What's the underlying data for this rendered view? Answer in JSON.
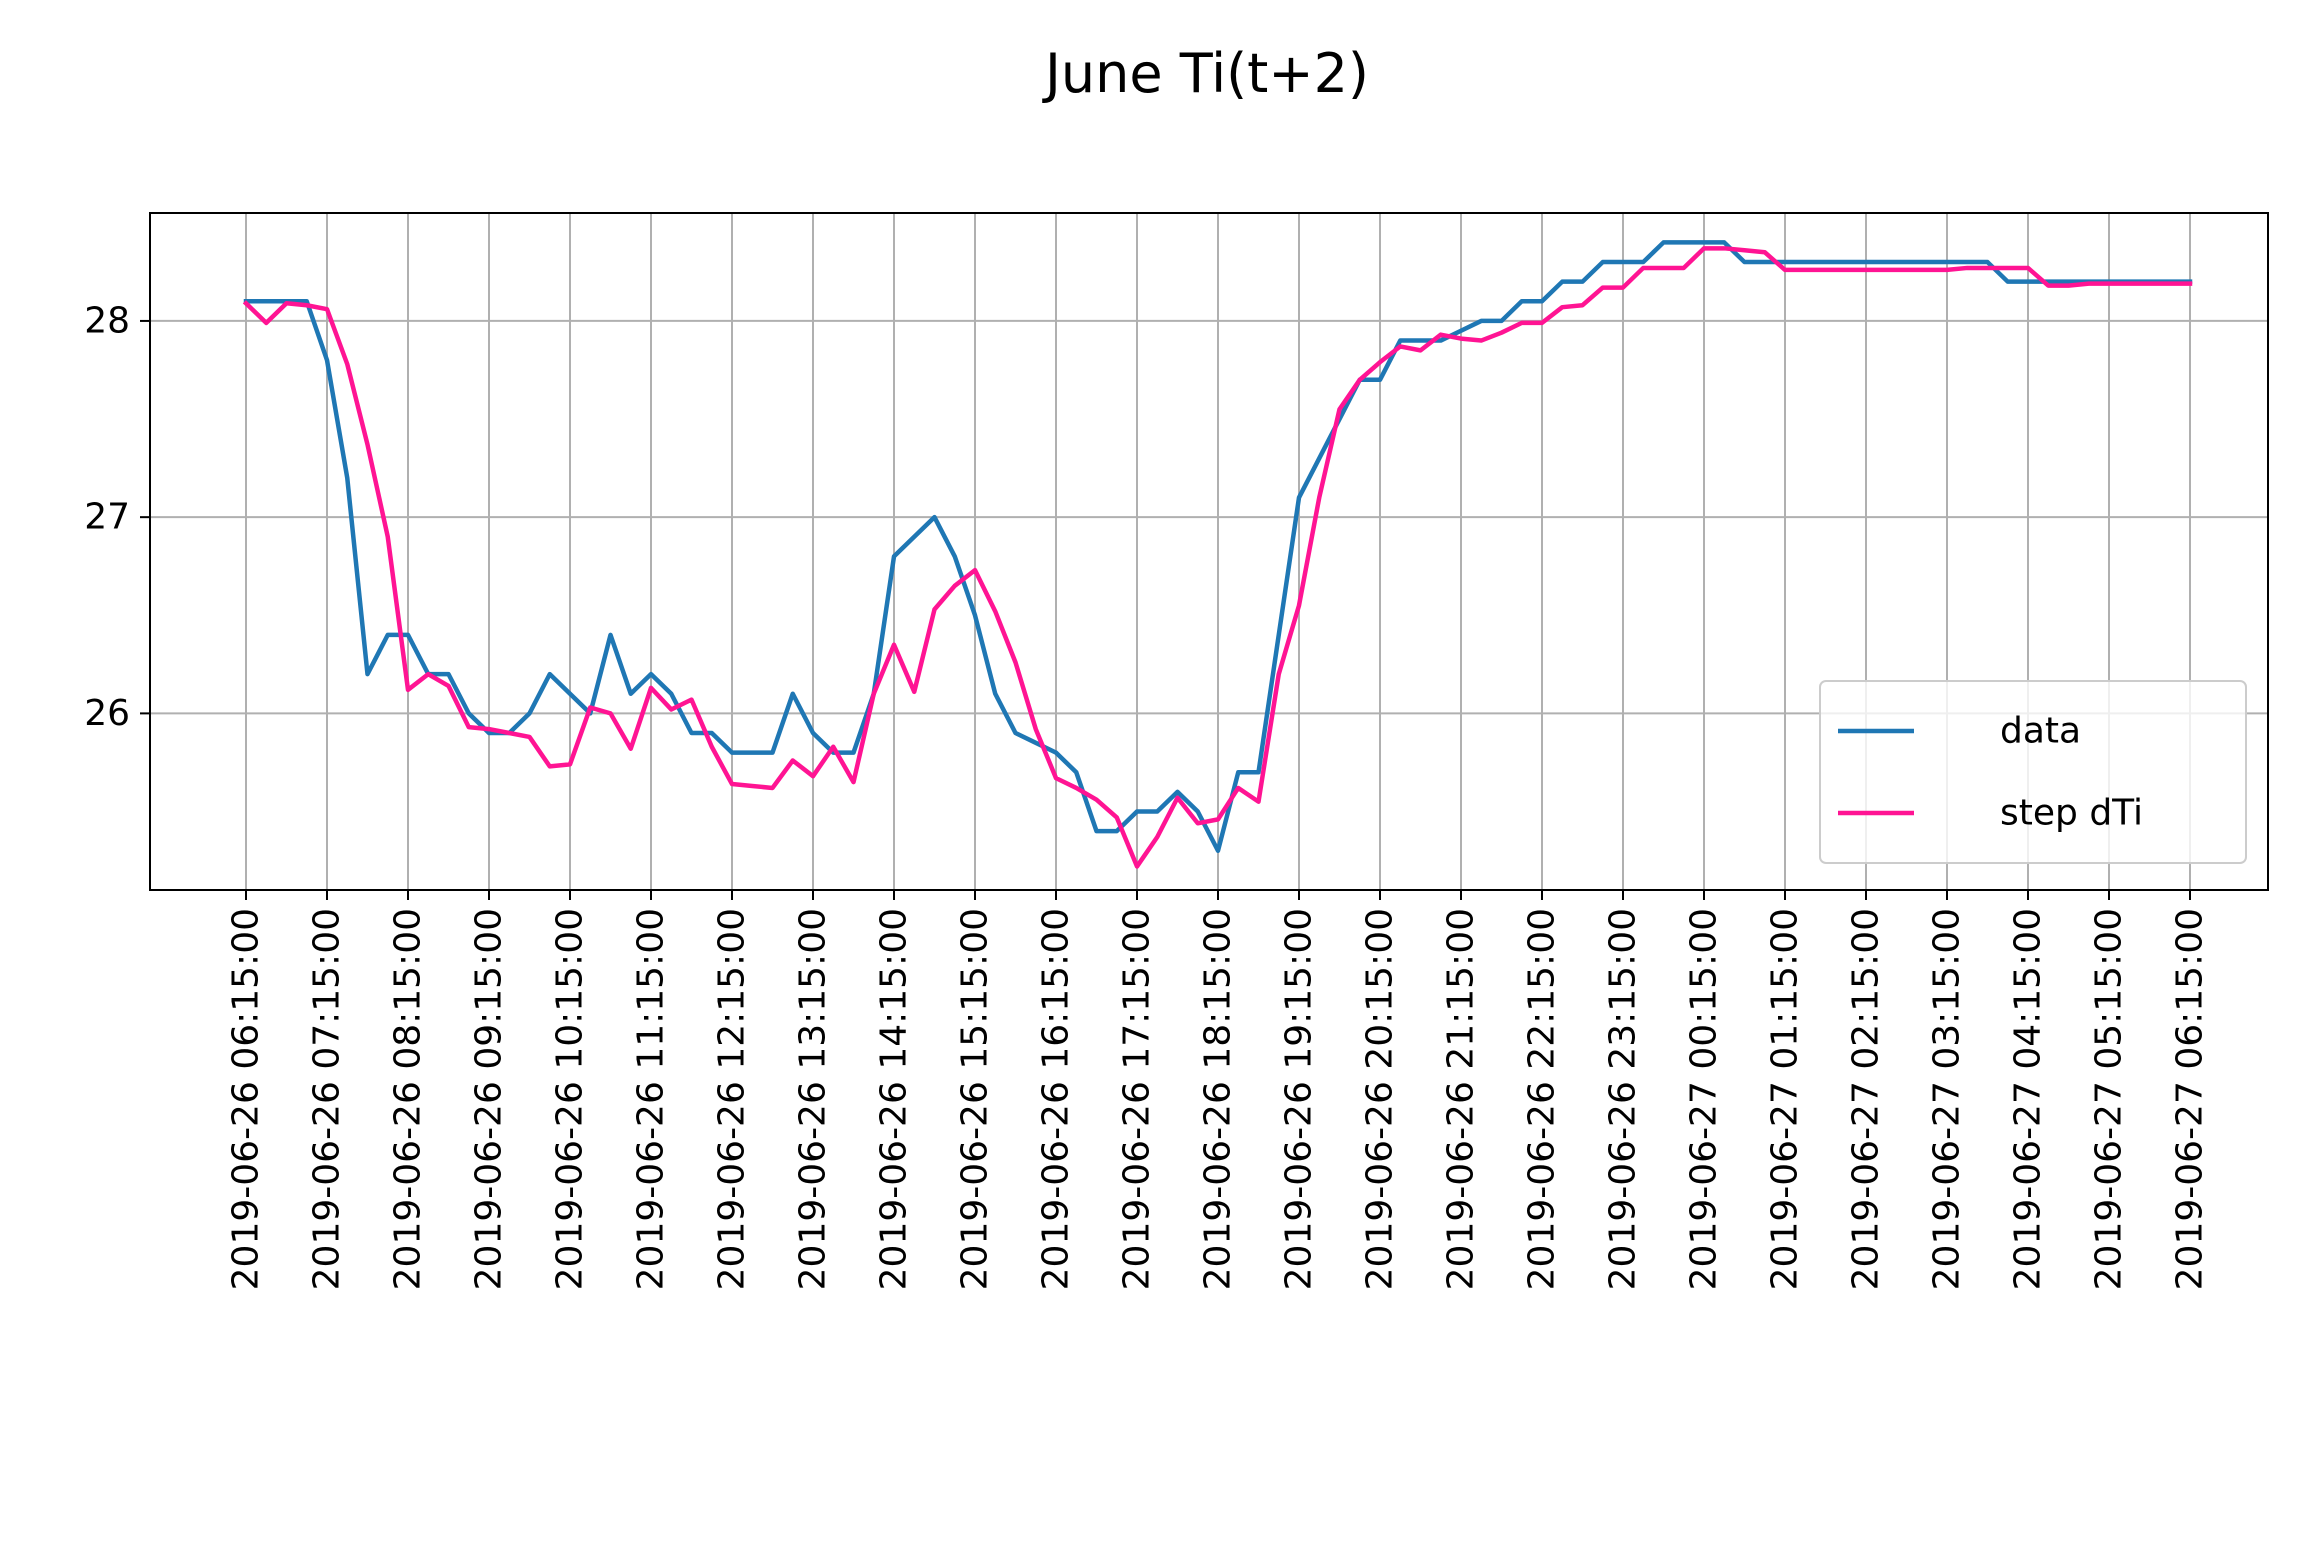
{
  "chart_data": {
    "type": "line",
    "title": "June Ti(t+2)",
    "xlabel": "",
    "ylabel": "",
    "grid": true,
    "legend_position": "lower-right",
    "ylim": [
      25.1,
      28.55
    ],
    "yticks": [
      26,
      27,
      28
    ],
    "x_start": "2019-06-26 06:15:00",
    "x_end": "2019-06-27 06:15:00",
    "x_tick_labels": [
      "2019-06-26 06:15:00",
      "2019-06-26 07:15:00",
      "2019-06-26 08:15:00",
      "2019-06-26 09:15:00",
      "2019-06-26 10:15:00",
      "2019-06-26 11:15:00",
      "2019-06-26 12:15:00",
      "2019-06-26 13:15:00",
      "2019-06-26 14:15:00",
      "2019-06-26 15:15:00",
      "2019-06-26 16:15:00",
      "2019-06-26 17:15:00",
      "2019-06-26 18:15:00",
      "2019-06-26 19:15:00",
      "2019-06-26 20:15:00",
      "2019-06-26 21:15:00",
      "2019-06-26 22:15:00",
      "2019-06-26 23:15:00",
      "2019-06-27 00:15:00",
      "2019-06-27 01:15:00",
      "2019-06-27 02:15:00",
      "2019-06-27 03:15:00",
      "2019-06-27 04:15:00",
      "2019-06-27 05:15:00",
      "2019-06-27 06:15:00"
    ],
    "x_step_minutes": 15,
    "series": [
      {
        "name": "data",
        "color": "#1f77b4",
        "values": [
          28.1,
          28.1,
          28.1,
          28.1,
          27.8,
          27.2,
          26.2,
          26.4,
          26.4,
          26.2,
          26.2,
          26.0,
          25.9,
          25.9,
          26.0,
          26.2,
          26.1,
          26.0,
          26.4,
          26.1,
          26.2,
          26.1,
          25.9,
          25.9,
          25.8,
          25.8,
          25.8,
          26.1,
          25.9,
          25.8,
          25.8,
          26.1,
          26.8,
          26.9,
          27.0,
          26.8,
          26.5,
          26.1,
          25.9,
          25.85,
          25.8,
          25.7,
          25.4,
          25.4,
          25.5,
          25.5,
          25.6,
          25.5,
          25.3,
          25.7,
          25.7,
          26.4,
          27.1,
          27.3,
          27.5,
          27.7,
          27.7,
          27.9,
          27.9,
          27.9,
          27.95,
          28.0,
          28.0,
          28.1,
          28.1,
          28.2,
          28.2,
          28.3,
          28.3,
          28.3,
          28.4,
          28.4,
          28.4,
          28.4,
          28.3,
          28.3,
          28.3,
          28.3,
          28.3,
          28.3,
          28.3,
          28.3,
          28.3,
          28.3,
          28.3,
          28.3,
          28.3,
          28.2,
          28.2,
          28.2,
          28.2,
          28.2,
          28.2,
          28.2,
          28.2,
          28.2,
          28.2
        ]
      },
      {
        "name": "step dTi",
        "color": "#ff1493",
        "values": [
          28.09,
          27.99,
          28.09,
          28.08,
          28.06,
          27.78,
          27.37,
          26.9,
          26.12,
          26.2,
          26.14,
          25.93,
          25.92,
          25.9,
          25.88,
          25.73,
          25.74,
          26.03,
          26.0,
          25.82,
          26.13,
          26.02,
          26.07,
          25.83,
          25.64,
          25.63,
          25.62,
          25.76,
          25.68,
          25.83,
          25.65,
          26.1,
          26.35,
          26.11,
          26.53,
          26.65,
          26.73,
          26.52,
          26.26,
          25.92,
          25.67,
          25.62,
          25.56,
          25.47,
          25.22,
          25.37,
          25.57,
          25.44,
          25.46,
          25.62,
          25.55,
          26.2,
          26.55,
          27.1,
          27.55,
          27.7,
          27.79,
          27.87,
          27.85,
          27.93,
          27.91,
          27.9,
          27.94,
          27.99,
          27.99,
          28.07,
          28.08,
          28.17,
          28.17,
          28.27,
          28.27,
          28.27,
          28.37,
          28.37,
          28.36,
          28.35,
          28.26,
          28.26,
          28.26,
          28.26,
          28.26,
          28.26,
          28.26,
          28.26,
          28.26,
          28.27,
          28.27,
          28.27,
          28.27,
          28.18,
          28.18,
          28.19,
          28.19,
          28.19,
          28.19,
          28.19,
          28.19
        ]
      }
    ]
  }
}
